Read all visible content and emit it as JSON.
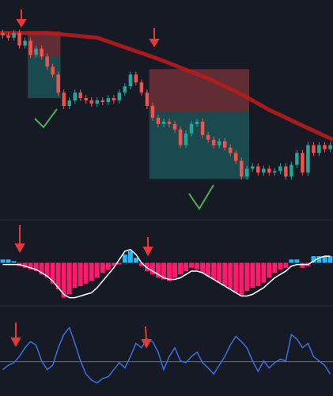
{
  "chart_data": [
    {
      "type": "candlestick",
      "xlim": [
        -0.5,
        59.5
      ],
      "ylim": [
        0,
        280
      ],
      "up_color": "#26a69a",
      "down_color": "#ef5350",
      "open": [
        238,
        235,
        232,
        238,
        222,
        228,
        210,
        218,
        208,
        195,
        185,
        162,
        145,
        152,
        162,
        155,
        152,
        148,
        152,
        150,
        155,
        152,
        162,
        170,
        185,
        175,
        162,
        145,
        130,
        122,
        125,
        122,
        115,
        95,
        110,
        122,
        125,
        108,
        102,
        95,
        100,
        92,
        85,
        75,
        55,
        65,
        68,
        60,
        65,
        60,
        62,
        68,
        55,
        70,
        85,
        60,
        95,
        85,
        95,
        90
      ],
      "high": [
        242,
        239,
        242,
        242,
        232,
        232,
        222,
        222,
        212,
        199,
        189,
        166,
        156,
        166,
        166,
        159,
        156,
        156,
        156,
        159,
        159,
        166,
        174,
        189,
        189,
        179,
        166,
        149,
        134,
        129,
        129,
        126,
        119,
        114,
        126,
        129,
        129,
        112,
        106,
        104,
        104,
        96,
        89,
        79,
        69,
        72,
        72,
        69,
        69,
        66,
        72,
        72,
        74,
        89,
        89,
        99,
        99,
        99,
        99,
        99
      ],
      "low": [
        231,
        228,
        228,
        218,
        218,
        206,
        206,
        204,
        191,
        181,
        158,
        141,
        141,
        148,
        151,
        148,
        144,
        144,
        146,
        146,
        148,
        148,
        158,
        166,
        171,
        158,
        141,
        126,
        118,
        118,
        118,
        111,
        91,
        91,
        106,
        118,
        104,
        98,
        91,
        91,
        88,
        81,
        71,
        51,
        51,
        61,
        56,
        56,
        56,
        56,
        58,
        51,
        51,
        66,
        56,
        56,
        81,
        81,
        86,
        86
      ],
      "close": [
        235,
        232,
        238,
        222,
        228,
        210,
        218,
        208,
        195,
        185,
        162,
        145,
        152,
        162,
        155,
        152,
        148,
        152,
        150,
        155,
        152,
        162,
        170,
        185,
        175,
        162,
        145,
        130,
        122,
        125,
        122,
        115,
        95,
        110,
        122,
        125,
        108,
        102,
        95,
        100,
        92,
        85,
        75,
        55,
        65,
        68,
        60,
        65,
        60,
        62,
        68,
        55,
        70,
        85,
        60,
        95,
        85,
        95,
        90,
        95
      ],
      "ma": {
        "color": "#b71c1c",
        "x": [
          -0.5,
          8,
          17,
          28,
          37,
          43,
          48,
          54,
          59.5
        ],
        "values": [
          238,
          238,
          232,
          205,
          180,
          160,
          140,
          120,
          102
        ]
      },
      "zones": [
        {
          "color": "#ef5350",
          "x": [
            4.5,
            10.4
          ],
          "y": [
            208,
            240
          ]
        },
        {
          "color": "#26a69a",
          "x": [
            4.5,
            10.4
          ],
          "y": [
            155,
            208
          ]
        },
        {
          "color": "#ef5350",
          "x": [
            26.4,
            44.4
          ],
          "y": [
            137,
            192
          ]
        },
        {
          "color": "#26a69a",
          "x": [
            26.4,
            44.4
          ],
          "y": [
            52,
            137
          ]
        }
      ]
    },
    {
      "type": "bar",
      "xlim": [
        -0.5,
        59.5
      ],
      "ylim": [
        -50,
        50
      ],
      "positive_color": "#29b6f6",
      "negative_color": "#ff1a6c",
      "values": [
        4,
        4,
        2,
        -4,
        -6,
        -8,
        -10,
        -14,
        -18,
        -25,
        -32,
        -42,
        -38,
        -30,
        -28,
        -25,
        -22,
        -18,
        -12,
        -8,
        -4,
        -2,
        10,
        14,
        6,
        -4,
        -10,
        -14,
        -18,
        -20,
        -22,
        -18,
        -14,
        -10,
        -6,
        -8,
        -12,
        -16,
        -20,
        -24,
        -28,
        -32,
        -36,
        -40,
        -34,
        -30,
        -28,
        -24,
        -18,
        -12,
        -8,
        -6,
        4,
        4,
        -6,
        -4,
        8,
        8,
        8,
        8
      ],
      "signal": {
        "color": "#ffffff",
        "values": [
          -2,
          -2,
          -2,
          -2,
          -4,
          -6,
          -8,
          -12,
          -16,
          -22,
          -30,
          -38,
          -42,
          -42,
          -40,
          -38,
          -36,
          -30,
          -22,
          -14,
          -6,
          4,
          14,
          16,
          10,
          0,
          -6,
          -10,
          -14,
          -18,
          -20,
          -20,
          -18,
          -14,
          -10,
          -10,
          -12,
          -16,
          -20,
          -24,
          -28,
          -32,
          -36,
          -40,
          -40,
          -38,
          -34,
          -30,
          -24,
          -18,
          -14,
          -10,
          -4,
          -2,
          -2,
          -2,
          2,
          6,
          8,
          8
        ]
      }
    },
    {
      "type": "line",
      "xlim": [
        -0.5,
        59.5
      ],
      "ylim": [
        0,
        100
      ],
      "color": "#3d6fe0",
      "level": 39,
      "values": [
        30,
        35,
        38,
        45,
        55,
        62,
        58,
        40,
        30,
        35,
        55,
        70,
        78,
        60,
        40,
        25,
        18,
        15,
        20,
        22,
        30,
        38,
        32,
        45,
        60,
        55,
        65,
        62,
        50,
        30,
        45,
        55,
        40,
        38,
        45,
        50,
        38,
        32,
        25,
        35,
        45,
        58,
        68,
        62,
        55,
        40,
        28,
        40,
        32,
        38,
        42,
        40,
        70,
        65,
        55,
        60,
        45,
        40,
        35,
        25
      ]
    }
  ]
}
